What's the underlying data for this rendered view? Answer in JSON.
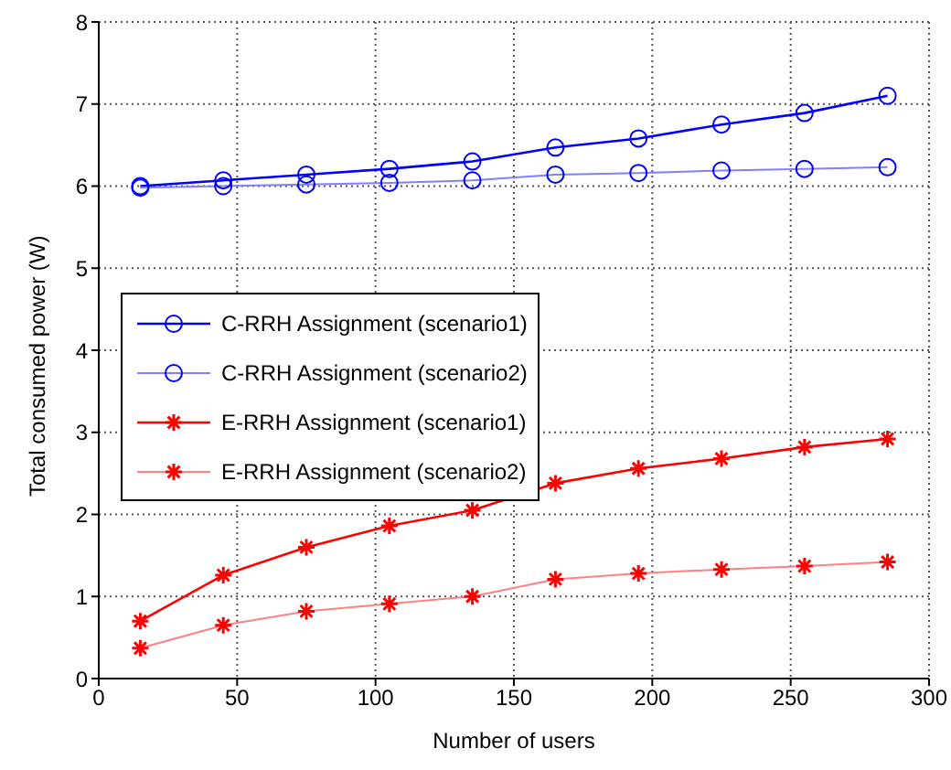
{
  "chart_data": {
    "type": "line",
    "xlabel": "Number of users",
    "ylabel": "Total consumed power (W)",
    "x": [
      15,
      45,
      75,
      105,
      135,
      165,
      195,
      225,
      255,
      285
    ],
    "xlim": [
      0,
      300
    ],
    "xticks": [
      0,
      50,
      100,
      150,
      200,
      250,
      300
    ],
    "ylim": [
      0,
      8
    ],
    "yticks": [
      0,
      1,
      2,
      3,
      4,
      5,
      6,
      7,
      8
    ],
    "grid": true,
    "legend": "left",
    "line_style": "solid",
    "series": [
      {
        "name": "C-RRH Assignment (scenario1)",
        "color": "#0000ff",
        "marker": "circle",
        "values": [
          6.0,
          6.07,
          6.14,
          6.21,
          6.3,
          6.47,
          6.58,
          6.75,
          6.89,
          7.1
        ]
      },
      {
        "name": "C-RRH Assignment (scenario2)",
        "color": "#8080ff",
        "marker": "circle",
        "values": [
          5.98,
          6.0,
          6.02,
          6.04,
          6.07,
          6.14,
          6.16,
          6.19,
          6.21,
          6.23
        ]
      },
      {
        "name": "E-RRH Assignment (scenario1)",
        "color": "#ff0000",
        "marker": "cross",
        "values": [
          0.7,
          1.26,
          1.6,
          1.86,
          2.05,
          2.38,
          2.56,
          2.68,
          2.82,
          2.92
        ]
      },
      {
        "name": "E-RRH Assignment (scenario2)",
        "color": "#ff8080",
        "marker": "cross",
        "values": [
          0.37,
          0.65,
          0.82,
          0.91,
          1.0,
          1.21,
          1.28,
          1.33,
          1.37,
          1.42
        ]
      }
    ]
  }
}
